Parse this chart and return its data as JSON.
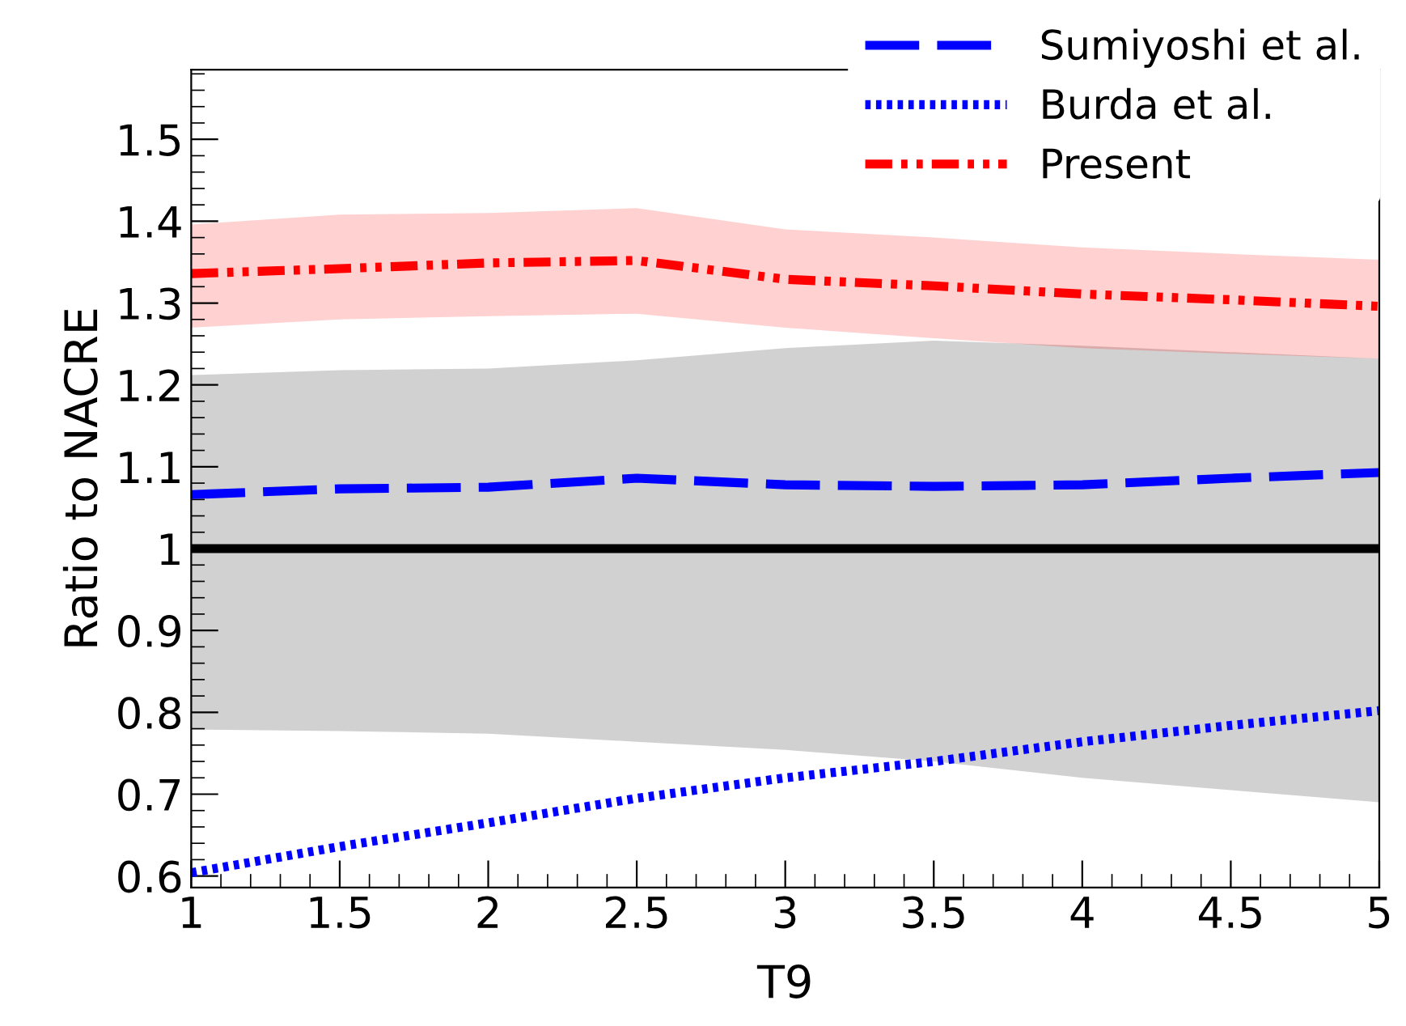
{
  "chart_data": {
    "type": "line",
    "xlabel": "T9",
    "ylabel": "Ratio to NACRE",
    "x": [
      1,
      1.5,
      2,
      2.5,
      3,
      3.5,
      4,
      4.5,
      5
    ],
    "xlim": [
      1,
      5
    ],
    "xticks": [
      1,
      1.5,
      2,
      2.5,
      3,
      3.5,
      4,
      4.5,
      5
    ],
    "ylim": [
      0.586,
      1.585
    ],
    "yticks": [
      0.6,
      0.7,
      0.8,
      0.9,
      {
        "value": 1,
        "label": "1"
      },
      1.1,
      1.2,
      1.3,
      1.4,
      1.5
    ],
    "grid": false,
    "legend": "top right",
    "marker": "none",
    "series": [
      {
        "color": "#000000",
        "line_style": "solid",
        "values": [
          1,
          1,
          1,
          1,
          1,
          1,
          1,
          1,
          1
        ],
        "lower": [
          0.779,
          0.777,
          0.774,
          0.764,
          0.754,
          0.74,
          0.72,
          0.705,
          0.69
        ],
        "upper": [
          1.212,
          1.218,
          1.22,
          1.23,
          1.245,
          1.254,
          1.248,
          1.24,
          1.232
        ]
      },
      {
        "name": "Sumiyoshi et al.",
        "color": "#0000ff",
        "line_style": "dashed",
        "values": [
          1.066,
          1.073,
          1.075,
          1.086,
          1.078,
          1.076,
          1.078,
          1.086,
          1.093
        ]
      },
      {
        "name": "Burda et al.",
        "color": "#0000ff",
        "line_style": "dotted",
        "values": [
          0.604,
          0.636,
          0.665,
          0.695,
          0.72,
          0.74,
          0.764,
          0.784,
          0.802
        ]
      },
      {
        "name": "Present",
        "color": "#ff0000",
        "line_style": "dashdot",
        "values": [
          1.336,
          1.342,
          1.349,
          1.352,
          1.329,
          1.321,
          1.311,
          1.304,
          1.296
        ],
        "lower": [
          1.27,
          1.28,
          1.284,
          1.287,
          1.27,
          1.257,
          1.245,
          1.238,
          1.232
        ],
        "upper": [
          1.396,
          1.408,
          1.41,
          1.416,
          1.39,
          1.38,
          1.368,
          1.36,
          1.353
        ]
      }
    ]
  }
}
